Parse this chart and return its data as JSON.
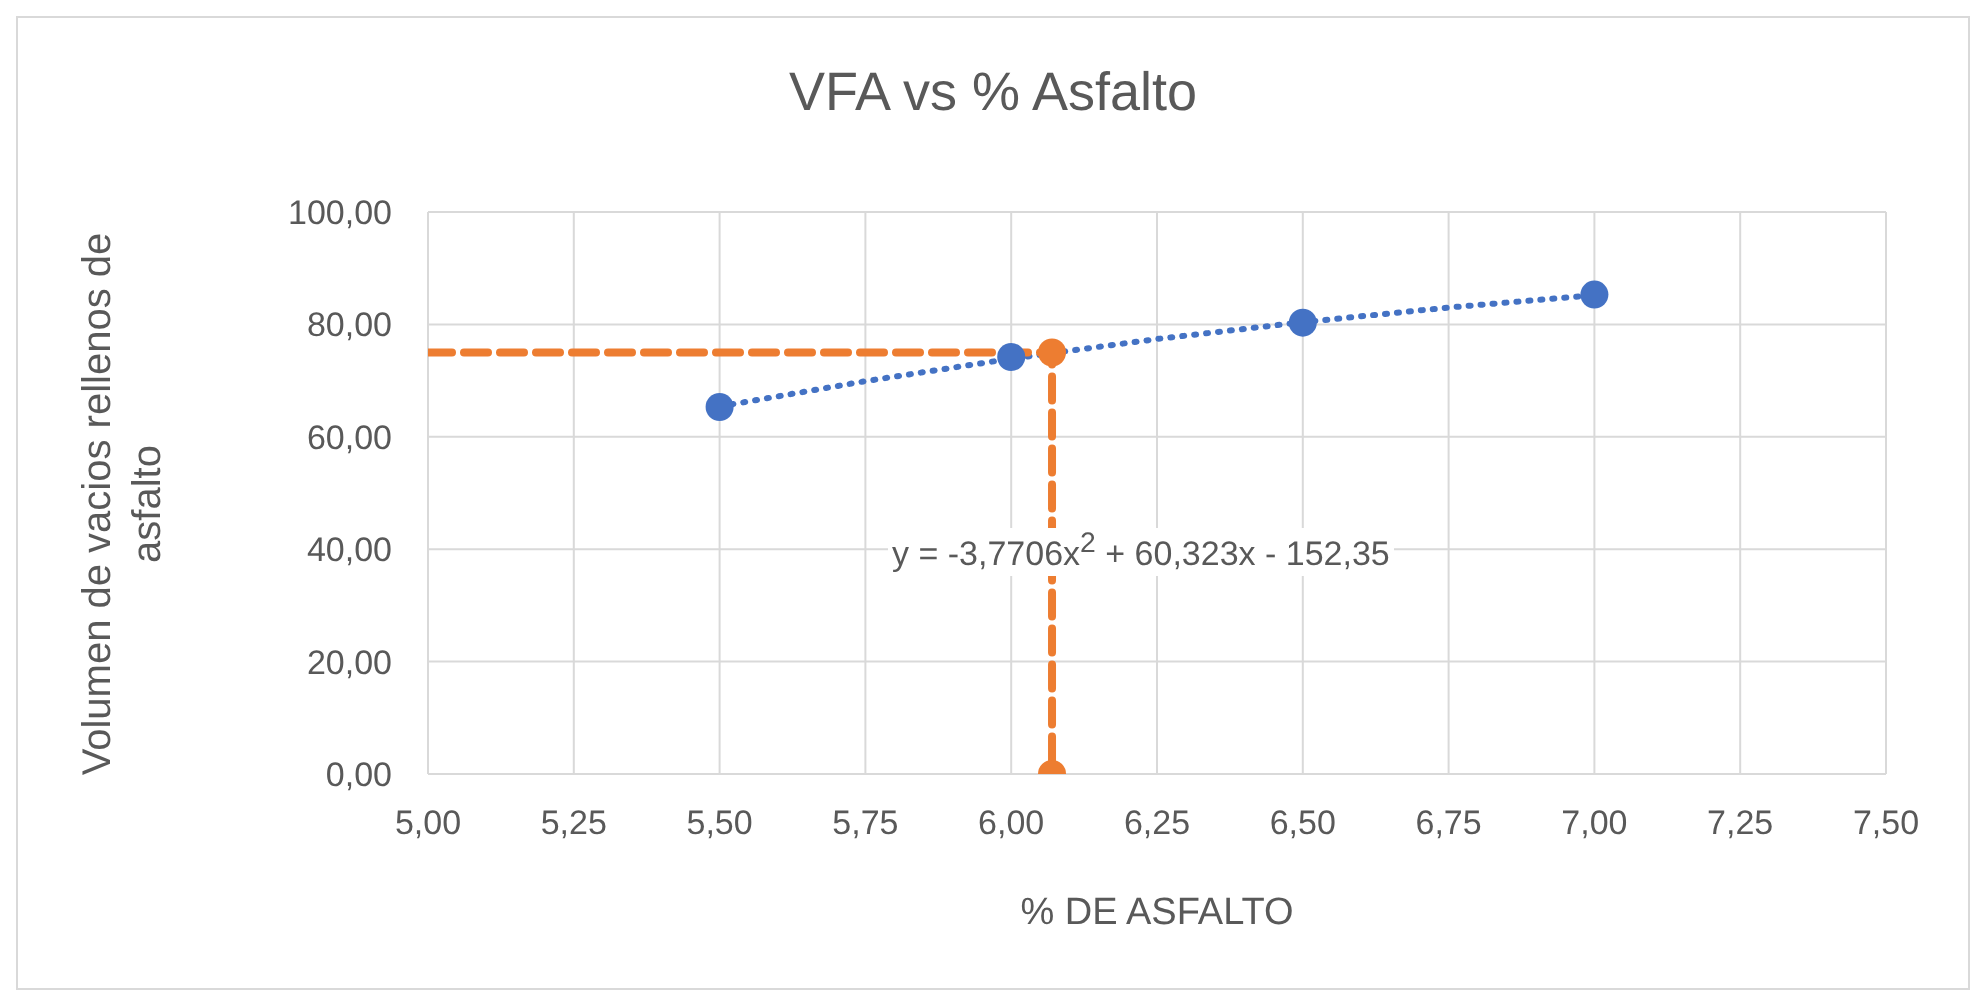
{
  "chart_data": {
    "type": "scatter",
    "title": "VFA vs % Asfalto",
    "xlabel": "% DE ASFALTO",
    "ylabel": "Volumen de vacios rellenos de asfalto",
    "xlim": [
      5,
      7.5
    ],
    "xticks": [
      {
        "value": 5,
        "label": "5,00"
      },
      {
        "value": 5.25,
        "label": "5,25"
      },
      {
        "value": 5.5,
        "label": "5,50"
      },
      {
        "value": 5.75,
        "label": "5,75"
      },
      {
        "value": 6,
        "label": "6,00"
      },
      {
        "value": 6.25,
        "label": "6,25"
      },
      {
        "value": 6.5,
        "label": "6,50"
      },
      {
        "value": 6.75,
        "label": "6,75"
      },
      {
        "value": 7,
        "label": "7,00"
      },
      {
        "value": 7.25,
        "label": "7,25"
      },
      {
        "value": 7.5,
        "label": "7,50"
      }
    ],
    "ylim": [
      0,
      100
    ],
    "yticks": [
      {
        "value": 0,
        "label": "0,00"
      },
      {
        "value": 20,
        "label": "20,00"
      },
      {
        "value": 40,
        "label": "40,00"
      },
      {
        "value": 60,
        "label": "60,00"
      },
      {
        "value": 80,
        "label": "80,00"
      },
      {
        "value": 100,
        "label": "100,00"
      }
    ],
    "grid": true,
    "annotations": [
      "y = -3,7706x$^{2}$ + 60,323x - 152,35"
    ],
    "series": [
      {
        "type": "line",
        "color": "#4472c4",
        "x": [
          5.5,
          5.75,
          6,
          6.25,
          6.5,
          6.75,
          7
        ],
        "values": [
          65.4,
          69.9,
          73.9,
          77.4,
          80.4,
          83.0,
          85.2
        ],
        "marker": "none",
        "line_style": "dotted"
      },
      {
        "type": "line",
        "color": "#ed7d31",
        "x": [
          5,
          6.07,
          6.07
        ],
        "values": [
          75,
          75,
          0
        ],
        "marker": "none",
        "line_style": "dashed"
      },
      {
        "type": "scatter",
        "color": "#ed7d31",
        "x": [
          6.07,
          6.07
        ],
        "values": [
          75,
          0
        ],
        "marker": "circle"
      },
      {
        "color": "#4472c4",
        "x": [
          5.5,
          6,
          6.5,
          7
        ],
        "values": [
          65.3,
          74.2,
          80.3,
          85.3
        ],
        "marker": "circle"
      }
    ]
  }
}
